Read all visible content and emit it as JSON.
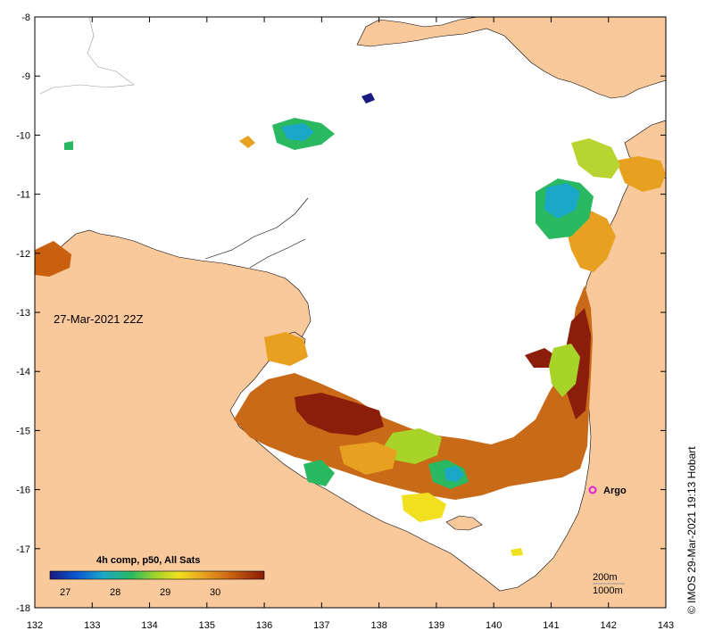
{
  "map": {
    "timestamp_label": "27-Mar-2021 22Z",
    "credit": "©  IMOS 29-Mar-2021 19:13 Hobart",
    "argo_label": "Argo",
    "legend": {
      "title": "4h comp, p50, All Sats",
      "ticks": [
        "27",
        "28",
        "29",
        "30"
      ],
      "colormap": [
        "#1a1a80",
        "#0a55d0",
        "#1aa8c8",
        "#2ab860",
        "#a8d42a",
        "#f0e020",
        "#e8a020",
        "#c86010",
        "#8a1a08"
      ]
    },
    "contours": [
      "200m",
      "1000m"
    ],
    "axes": {
      "x_ticks": [
        "132",
        "133",
        "134",
        "135",
        "136",
        "137",
        "138",
        "139",
        "140",
        "141",
        "142",
        "143"
      ],
      "y_ticks": [
        "-8",
        "-9",
        "-10",
        "-11",
        "-12",
        "-13",
        "-14",
        "-15",
        "-16",
        "-17",
        "-18"
      ],
      "x_range": [
        132,
        143
      ],
      "y_range": [
        -18,
        -8
      ]
    },
    "colors": {
      "land": "#f9c89b",
      "no_data": "#ffffff",
      "frame": "#000000",
      "argo_marker": "#e020e0"
    }
  }
}
